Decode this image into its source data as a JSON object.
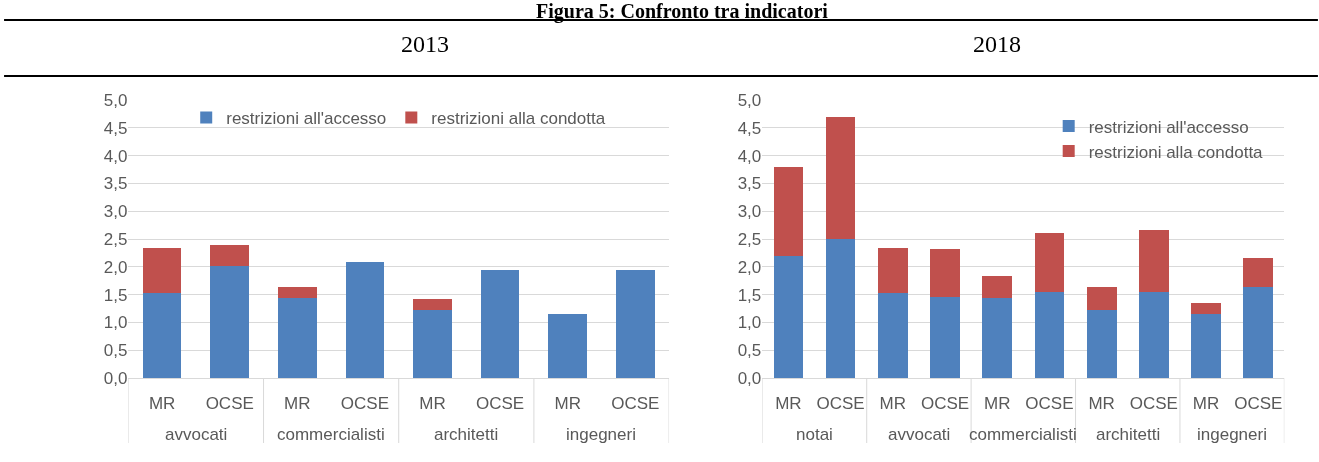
{
  "chart_data": [
    {
      "type": "bar",
      "title": "Figura 5: Confronto tra indicatori",
      "subtitle": "2013",
      "stacked": true,
      "categories": [
        "MR",
        "OCSE",
        "MR",
        "OCSE",
        "MR",
        "OCSE",
        "MR",
        "OCSE"
      ],
      "annotations": [
        "avvocati",
        "commercialisti",
        "architetti",
        "ingegneri"
      ],
      "series": [
        {
          "name": "restrizioni all'accesso",
          "color": "#4f81bd",
          "values": [
            1.53,
            2.01,
            1.43,
            2.08,
            1.23,
            1.95,
            1.15,
            1.95
          ]
        },
        {
          "name": "restrizioni alla condotta",
          "color": "#c0504d",
          "values": [
            0.8,
            0.38,
            0.2,
            0,
            0.19,
            0,
            0,
            0
          ]
        }
      ],
      "ylim": [
        0,
        5
      ],
      "yticks": [
        {
          "value": 0,
          "label": "0,0"
        },
        {
          "value": 0.5,
          "label": "0,5"
        },
        {
          "value": 1,
          "label": "1,0"
        },
        {
          "value": 1.5,
          "label": "1,5"
        },
        {
          "value": 2,
          "label": "2,0"
        },
        {
          "value": 2.5,
          "label": "2,5"
        },
        {
          "value": 3,
          "label": "3,0"
        },
        {
          "value": 3.5,
          "label": "3,5"
        },
        {
          "value": 4,
          "label": "4,0"
        },
        {
          "value": 4.5,
          "label": "4,5"
        },
        {
          "value": 5,
          "label": "5,0"
        }
      ],
      "grid": "y",
      "legend": "top"
    },
    {
      "type": "bar",
      "subtitle": "2018",
      "stacked": true,
      "categories": [
        "MR",
        "OCSE",
        "MR",
        "OCSE",
        "MR",
        "OCSE",
        "MR",
        "OCSE",
        "MR",
        "OCSE"
      ],
      "annotations": [
        "notai",
        "avvocati",
        "commercialisti",
        "architetti",
        "ingegneri"
      ],
      "series": [
        {
          "name": "restrizioni all'accesso",
          "color": "#4f81bd",
          "values": [
            2.2,
            2.5,
            1.53,
            1.45,
            1.43,
            1.55,
            1.23,
            1.55,
            1.15,
            1.64
          ]
        },
        {
          "name": "restrizioni alla condotta",
          "color": "#c0504d",
          "values": [
            1.6,
            2.19,
            0.8,
            0.87,
            0.4,
            1.06,
            0.4,
            1.12,
            0.2,
            0.51
          ]
        }
      ],
      "ylim": [
        0,
        5
      ],
      "yticks": [
        {
          "value": 0,
          "label": "0,0"
        },
        {
          "value": 0.5,
          "label": "0,5"
        },
        {
          "value": 1,
          "label": "1,0"
        },
        {
          "value": 1.5,
          "label": "1,5"
        },
        {
          "value": 2,
          "label": "2,0"
        },
        {
          "value": 2.5,
          "label": "2,5"
        },
        {
          "value": 3,
          "label": "3,0"
        },
        {
          "value": 3.5,
          "label": "3,5"
        },
        {
          "value": 4,
          "label": "4,0"
        },
        {
          "value": 4.5,
          "label": "4,5"
        },
        {
          "value": 5,
          "label": "5,0"
        }
      ],
      "grid": "y",
      "legend": "top right"
    }
  ]
}
